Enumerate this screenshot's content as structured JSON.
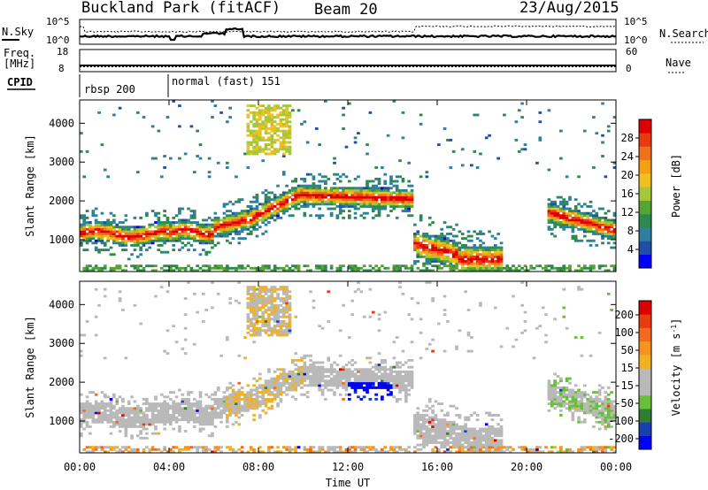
{
  "header": {
    "station": "Buckland Park (fitACF)",
    "beam": "Beam 20",
    "date": "23/Aug/2015"
  },
  "noise_panel": {
    "left_label": "N.Sky",
    "right_label": "N.Search",
    "tick_top": "10^5",
    "tick_bottom": "10^0",
    "right_tick_top": "10^5",
    "right_tick_bottom": "10^0"
  },
  "freq_panel": {
    "left_label_line1": "Freq.",
    "left_label_line2": "[MHz]",
    "right_label": "Nave",
    "left_ticks": [
      "18",
      "8"
    ],
    "right_ticks": [
      "60",
      "0"
    ]
  },
  "cpid_panel": {
    "label": "CPID",
    "modes": [
      {
        "name": "rbsp 200",
        "start_hour": 0
      },
      {
        "name": "normal (fast) 151",
        "start_hour": 4
      }
    ]
  },
  "chart_data": [
    {
      "type": "heatmap",
      "quantity": "Power",
      "colorbar_label": "Power [dB]",
      "ylabel": "Slant Range [km]",
      "xlabel": "Time UT",
      "xlim_hours": [
        0,
        24
      ],
      "ylim": [
        180,
        4600
      ],
      "yticks": [
        1000,
        2000,
        3000,
        4000
      ],
      "colorbar_ticks": [
        "4",
        "8",
        "12",
        "16",
        "20",
        "24",
        "28"
      ],
      "colorbar_colors": [
        "#0000ff",
        "#1f4fa8",
        "#2e7fa0",
        "#2d8a4f",
        "#55a532",
        "#a5c83a",
        "#f0c020",
        "#f5a010",
        "#f07020",
        "#e83a10",
        "#dd0000"
      ]
    },
    {
      "type": "heatmap",
      "quantity": "Velocity",
      "colorbar_label": "Velocity [m s^-1]",
      "ylabel": "Slant Range [km]",
      "xlabel": "Time UT",
      "xlim_hours": [
        0,
        24
      ],
      "ylim": [
        180,
        4600
      ],
      "yticks": [
        1000,
        2000,
        3000,
        4000
      ],
      "colorbar_ticks": [
        "200",
        "100",
        "50",
        "15",
        "-15",
        "-50",
        "-100",
        "-200"
      ],
      "colorbar_colors": [
        "#0000ff",
        "#1a3fb0",
        "#2e7d32",
        "#6abf3a",
        "#b9b9b9",
        "#b9b9b9",
        "#f2b11e",
        "#f5931e",
        "#f26a1e",
        "#e83c10",
        "#dd0000"
      ]
    }
  ],
  "x_axis": {
    "title": "Time UT",
    "tick_labels": [
      "00:00",
      "04:00",
      "08:00",
      "12:00",
      "16:00",
      "20:00",
      "00:00"
    ],
    "tick_hours": [
      0,
      4,
      8,
      12,
      16,
      20,
      24
    ]
  }
}
